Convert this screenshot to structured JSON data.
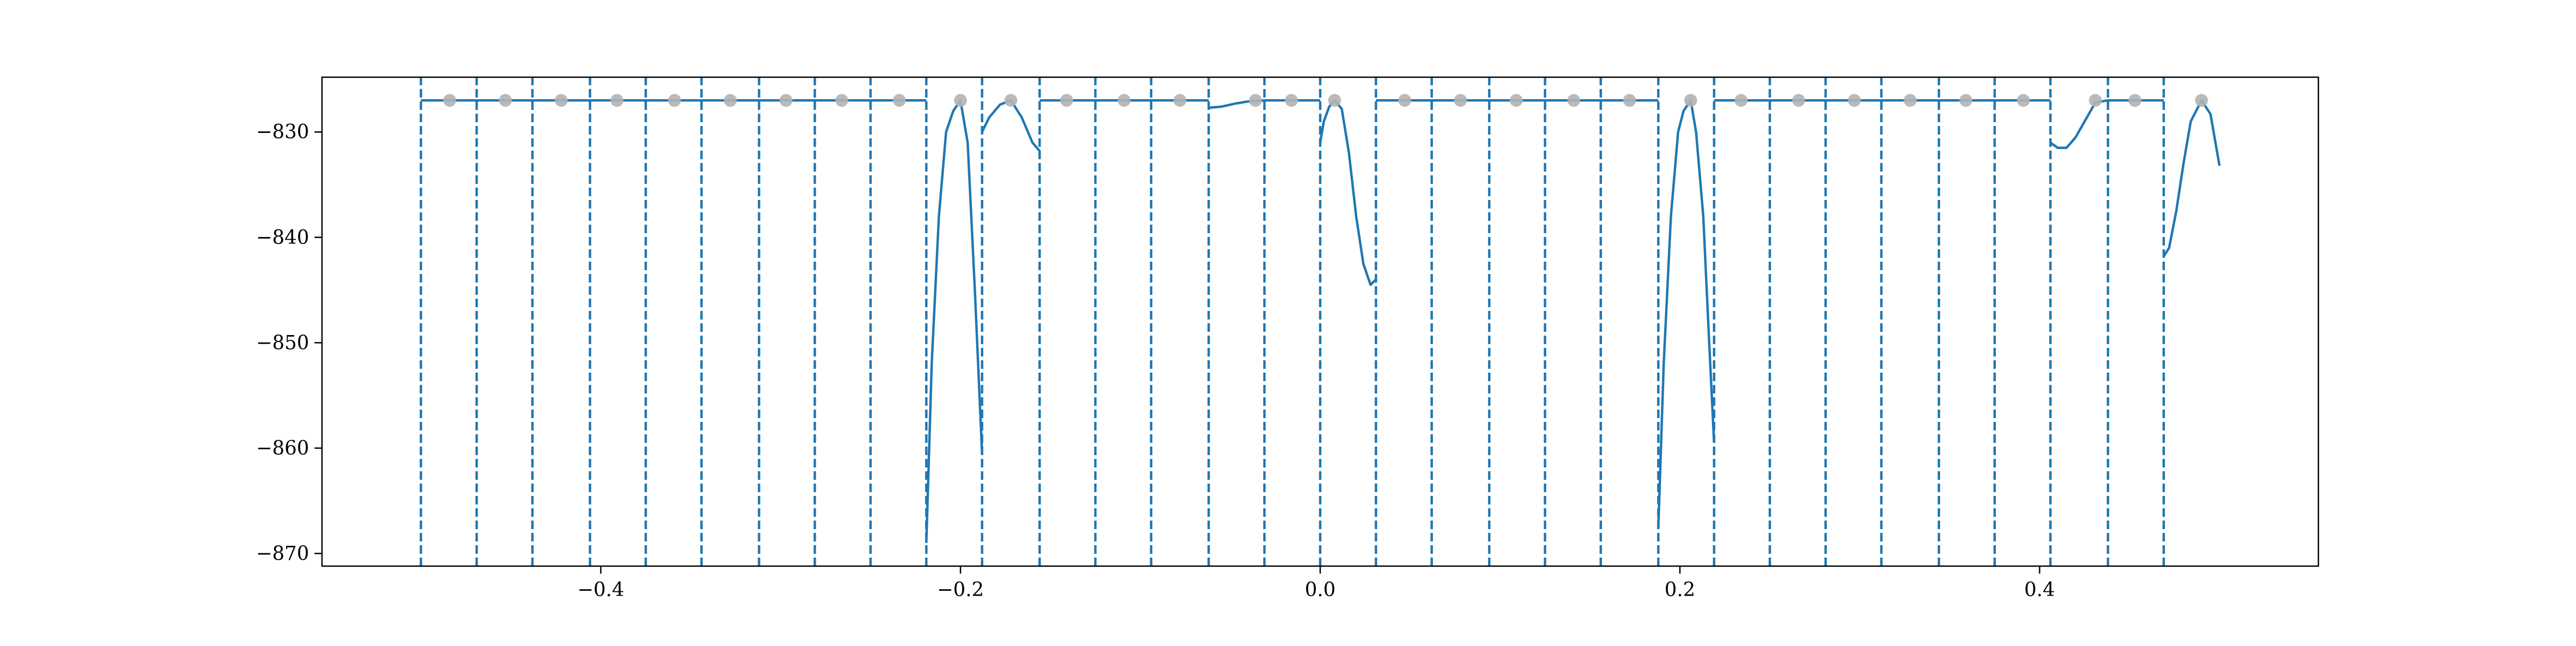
{
  "chart_data": {
    "type": "line",
    "title": "",
    "xlabel": "",
    "ylabel": "",
    "xlim": [
      -0.555,
      0.555
    ],
    "ylim": [
      -871.2,
      -824.8
    ],
    "grid": false,
    "legend": "none",
    "x_ticks": [
      {
        "value": -0.4,
        "label": "−0.4"
      },
      {
        "value": -0.2,
        "label": "−0.2"
      },
      {
        "value": 0.0,
        "label": "0.0"
      },
      {
        "value": 0.2,
        "label": "0.2"
      },
      {
        "value": 0.4,
        "label": "0.4"
      }
    ],
    "y_ticks": [
      {
        "value": -830,
        "label": "−830"
      },
      {
        "value": -840,
        "label": "−840"
      },
      {
        "value": -850,
        "label": "−850"
      },
      {
        "value": -860,
        "label": "−860"
      },
      {
        "value": -870,
        "label": "−870"
      }
    ],
    "colors": {
      "line": "#1f77b4",
      "vlines": "#1f77b4",
      "markers": "#b3b3b3",
      "axes": "#000000"
    },
    "vlines": {
      "style": "dashed",
      "y_bottom": -871.2,
      "y_top": -824.8,
      "x": [
        -0.5,
        -0.469,
        -0.438,
        -0.406,
        -0.375,
        -0.344,
        -0.312,
        -0.281,
        -0.25,
        -0.219,
        -0.188,
        -0.156,
        -0.125,
        -0.094,
        -0.062,
        -0.031,
        0.0,
        0.031,
        0.062,
        0.094,
        0.125,
        0.156,
        0.188,
        0.219,
        0.25,
        0.281,
        0.312,
        0.344,
        0.375,
        0.406,
        0.438,
        0.469
      ]
    },
    "markers": {
      "y": -827.0,
      "x": [
        -0.484,
        -0.453,
        -0.422,
        -0.391,
        -0.359,
        -0.328,
        -0.297,
        -0.266,
        -0.234,
        -0.2,
        -0.172,
        -0.141,
        -0.109,
        -0.078,
        -0.036,
        -0.016,
        0.008,
        0.047,
        0.078,
        0.109,
        0.141,
        0.172,
        0.206,
        0.234,
        0.266,
        0.297,
        0.328,
        0.359,
        0.391,
        0.431,
        0.453,
        0.49
      ]
    },
    "series": [
      {
        "segments": [
          {
            "x": [
              -0.5,
              -0.469,
              -0.438,
              -0.406,
              -0.375,
              -0.344,
              -0.312,
              -0.281,
              -0.25,
              -0.219
            ],
            "y": [
              -827,
              -827,
              -827,
              -827,
              -827,
              -827,
              -827,
              -827,
              -827,
              -827
            ]
          },
          {
            "x": [
              -0.219,
              -0.216,
              -0.212,
              -0.208,
              -0.204,
              -0.2,
              -0.196,
              -0.192,
              -0.188
            ],
            "y": [
              -869,
              -852,
              -838,
              -830,
              -828,
              -827,
              -831,
              -845,
              -860.5
            ]
          },
          {
            "x": [
              -0.188,
              -0.184,
              -0.178,
              -0.172,
              -0.166,
              -0.16,
              -0.156
            ],
            "y": [
              -830,
              -828.6,
              -827.4,
              -827,
              -828.6,
              -831,
              -831.8
            ]
          },
          {
            "x": [
              -0.156,
              -0.125,
              -0.094,
              -0.062
            ],
            "y": [
              -827,
              -827,
              -827,
              -827
            ]
          },
          {
            "x": [
              -0.062,
              -0.055,
              -0.047,
              -0.04,
              -0.031
            ],
            "y": [
              -827.7,
              -827.6,
              -827.3,
              -827.1,
              -827
            ]
          },
          {
            "x": [
              -0.031,
              0.0
            ],
            "y": [
              -827,
              -827
            ]
          },
          {
            "x": [
              0.0,
              0.002,
              0.005,
              0.008,
              0.012,
              0.016,
              0.02,
              0.024,
              0.028,
              0.031
            ],
            "y": [
              -831,
              -829,
              -827.6,
              -827,
              -827.8,
              -832,
              -838,
              -842.5,
              -844.5,
              -844
            ]
          },
          {
            "x": [
              0.031,
              0.062,
              0.094,
              0.125,
              0.156,
              0.188
            ],
            "y": [
              -827,
              -827,
              -827,
              -827,
              -827,
              -827
            ]
          },
          {
            "x": [
              0.188,
              0.191,
              0.195,
              0.199,
              0.202,
              0.206,
              0.209,
              0.213,
              0.216,
              0.219
            ],
            "y": [
              -867.5,
              -852,
              -838,
              -830,
              -828,
              -827,
              -830,
              -838,
              -849,
              -859.5
            ]
          },
          {
            "x": [
              0.219,
              0.25,
              0.281,
              0.312,
              0.344,
              0.375,
              0.406
            ],
            "y": [
              -827,
              -827,
              -827,
              -827,
              -827,
              -827,
              -827
            ]
          },
          {
            "x": [
              0.406,
              0.41,
              0.415,
              0.42,
              0.425,
              0.431,
              0.438
            ],
            "y": [
              -831,
              -831.5,
              -831.5,
              -830.5,
              -829,
              -827.2,
              -827
            ]
          },
          {
            "x": [
              0.438,
              0.469
            ],
            "y": [
              -827,
              -827
            ]
          },
          {
            "x": [
              0.469,
              0.472,
              0.476,
              0.48,
              0.484,
              0.49,
              0.495,
              0.5
            ],
            "y": [
              -841.8,
              -841,
              -837.5,
              -833,
              -829,
              -827,
              -828.3,
              -833.2
            ]
          }
        ]
      }
    ]
  }
}
